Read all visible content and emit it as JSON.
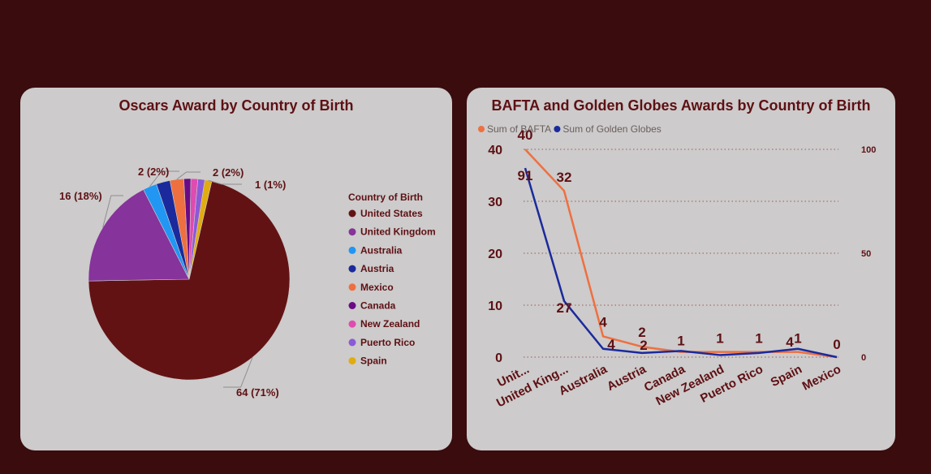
{
  "chart_data": [
    {
      "type": "pie",
      "title": "Oscars Award by Country of Birth",
      "legend_title": "Country of Birth",
      "legend_position": "right",
      "slices": [
        {
          "label": "United States",
          "value": 64,
          "data_label": "64 (71%)",
          "color": "#631214"
        },
        {
          "label": "United Kingdom",
          "value": 16,
          "data_label": "16 (18%)",
          "color": "#86339b"
        },
        {
          "label": "Australia",
          "value": 2,
          "data_label": "2 (2%)",
          "color": "#2196f3"
        },
        {
          "label": "Austria",
          "value": 2,
          "data_label": "",
          "color": "#1a2a9c"
        },
        {
          "label": "Mexico",
          "value": 2,
          "data_label": "2 (2%)",
          "color": "#ee7040"
        },
        {
          "label": "Canada",
          "value": 1,
          "data_label": "",
          "color": "#6a0b86"
        },
        {
          "label": "New Zealand",
          "value": 1,
          "data_label": "",
          "color": "#e04bb0"
        },
        {
          "label": "Puerto Rico",
          "value": 1,
          "data_label": "",
          "color": "#8a5ad8"
        },
        {
          "label": "Spain",
          "value": 1,
          "data_label": "1 (1%)",
          "color": "#e0ac10"
        }
      ]
    },
    {
      "type": "line",
      "title": "BAFTA and Golden Globes Awards by Country of Birth",
      "legend_position": "top-left",
      "categories": [
        "Unit...",
        "United King...",
        "Australia",
        "Austria",
        "Canada",
        "New Zealand",
        "Puerto Rico",
        "Spain",
        "Mexico"
      ],
      "series": [
        {
          "name": "Sum of BAFTA",
          "axis": "left",
          "color": "#ee7040",
          "values": [
            40,
            32,
            4,
            2,
            1,
            1,
            1,
            1,
            0
          ],
          "labels": [
            "40",
            "32",
            "4",
            "2",
            "1",
            "1",
            "1",
            "1",
            "0"
          ]
        },
        {
          "name": "Sum of Golden Globes",
          "axis": "right",
          "color": "#1a2a9c",
          "values": [
            91,
            27,
            4,
            2,
            3,
            1,
            2,
            4,
            0
          ],
          "labels": [
            "91",
            "27",
            "4",
            "2",
            "",
            "",
            "",
            "4",
            ""
          ]
        }
      ],
      "y_left": {
        "min": 0,
        "max": 40,
        "ticks": [
          "0",
          "10",
          "20",
          "30",
          "40"
        ]
      },
      "y_right": {
        "min": 0,
        "max": 100,
        "ticks": [
          "0",
          "50",
          "100"
        ]
      },
      "grid": true
    }
  ]
}
